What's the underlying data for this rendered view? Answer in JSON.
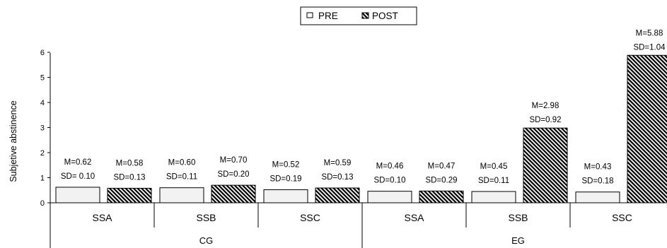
{
  "chart_data": {
    "type": "bar",
    "ylabel": "Subjetive abstinence",
    "ylim": [
      0,
      6
    ],
    "yticks": [
      "0",
      "1",
      "2",
      "3",
      "4",
      "5",
      "6"
    ],
    "legend": {
      "position": "top-center",
      "entries": [
        "PRE",
        "POST"
      ]
    },
    "groups": [
      {
        "label": "CG",
        "categories": [
          "SSA",
          "SSB",
          "SSC"
        ]
      },
      {
        "label": "EG",
        "categories": [
          "SSA",
          "SSB",
          "SSC"
        ]
      }
    ],
    "series": [
      {
        "name": "PRE",
        "fill": "#f2f2f2",
        "pattern": "solid",
        "values": [
          0.62,
          0.6,
          0.52,
          0.46,
          0.45,
          0.43
        ],
        "labels_m": [
          "M=0.62",
          "M=0.60",
          "M=0.52",
          "M=0.46",
          "M=0.45",
          "M=0.43"
        ],
        "labels_sd": [
          "SD= 0.10",
          "SD=0.11",
          "SD=0.19",
          "SD=0.10",
          "SD=0.11",
          "SD=0.18"
        ]
      },
      {
        "name": "POST",
        "fill": "#000000",
        "pattern": "diagonal-hatch",
        "values": [
          0.58,
          0.7,
          0.59,
          0.47,
          2.98,
          5.88
        ],
        "labels_m": [
          "M=0.58",
          "M=0.70",
          "M=0.59",
          "M=0.47",
          "M=2.98",
          "M=5.88"
        ],
        "labels_sd": [
          "SD=0.13",
          "SD=0.20",
          "SD=0.13",
          "SD=0.29",
          "SD=0.92",
          "SD=1.04"
        ]
      }
    ]
  }
}
